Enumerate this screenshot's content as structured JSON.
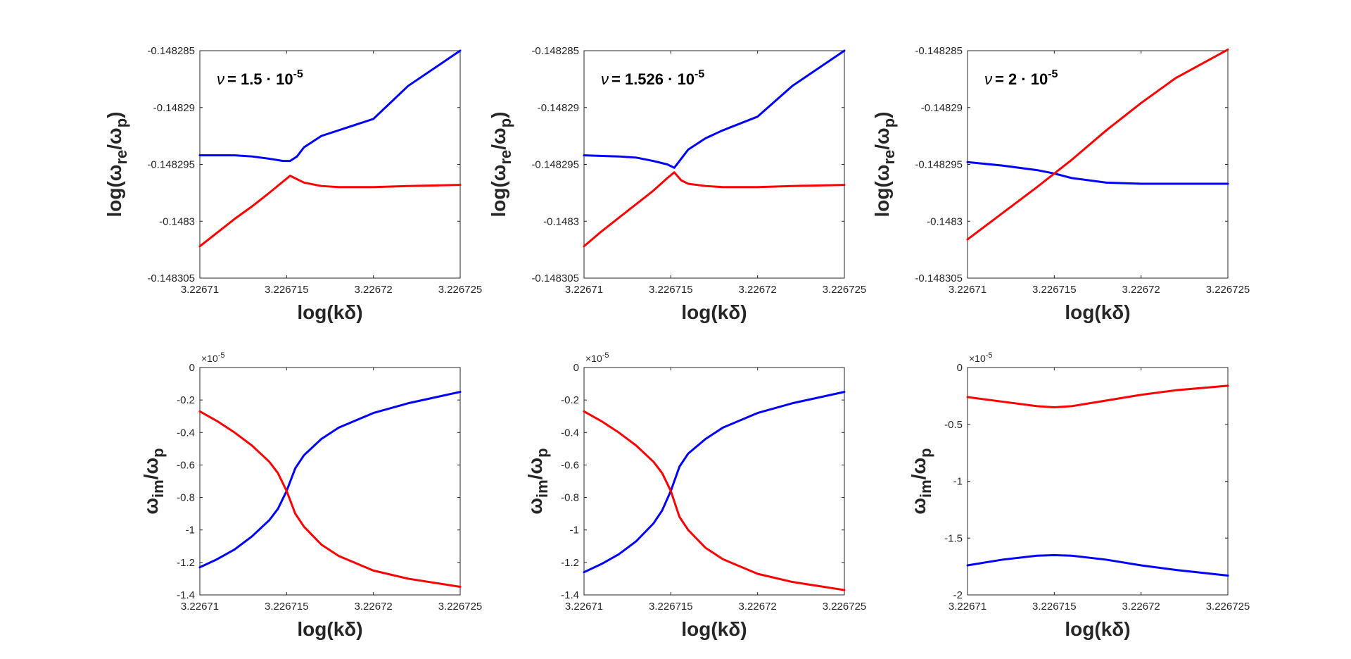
{
  "colors": {
    "series_a": "#0000ff",
    "series_b": "#ff0000",
    "axes": "#262626"
  },
  "chart_data": [
    {
      "type": "line",
      "panel": "top-left",
      "annotation": {
        "greek": "ν",
        "value": "= 1.5 · 10",
        "exponent": "-5"
      },
      "xlabel": "log(kδ)",
      "ylabel": {
        "prefix": "log(ω",
        "sub1": "re",
        "mid": "/ω",
        "sub2": "p",
        "suffix": ")"
      },
      "xlim": [
        3.22671,
        3.226725
      ],
      "ylim": [
        -0.148305,
        -0.148285
      ],
      "xticks": [
        3.22671,
        3.226715,
        3.22672,
        3.226725
      ],
      "xtick_labels": [
        "3.22671",
        "3.226715",
        "3.22672",
        "3.226725"
      ],
      "yticks": [
        -0.148305,
        -0.1483,
        -0.148295,
        -0.14829,
        -0.148285
      ],
      "ytick_labels": [
        "-0.148305",
        "-0.1483",
        "-0.148295",
        "-0.14829",
        "-0.148285"
      ],
      "series": [
        {
          "name": "blue",
          "color": "#0000ff",
          "x": [
            3.22671,
            3.226712,
            3.226713,
            3.226714,
            3.2267148,
            3.2267152,
            3.2267156,
            3.226716,
            3.226717,
            3.226718,
            3.22672,
            3.226722,
            3.226725
          ],
          "y": [
            -0.1482942,
            -0.1482942,
            -0.1482943,
            -0.1482945,
            -0.1482947,
            -0.1482947,
            -0.1482943,
            -0.1482935,
            -0.1482925,
            -0.148292,
            -0.148291,
            -0.1482881,
            -0.148285
          ]
        },
        {
          "name": "red",
          "color": "#ff0000",
          "x": [
            3.22671,
            3.226711,
            3.226712,
            3.226713,
            3.226714,
            3.2267148,
            3.2267152,
            3.2267156,
            3.226716,
            3.226717,
            3.226718,
            3.22672,
            3.226722,
            3.226725
          ],
          "y": [
            -0.1483022,
            -0.148301,
            -0.1482998,
            -0.1482987,
            -0.1482975,
            -0.1482965,
            -0.148296,
            -0.1482963,
            -0.1482966,
            -0.1482969,
            -0.148297,
            -0.148297,
            -0.1482969,
            -0.1482968
          ]
        }
      ]
    },
    {
      "type": "line",
      "panel": "top-middle",
      "annotation": {
        "greek": "ν",
        "value": "= 1.526 · 10",
        "exponent": "-5"
      },
      "xlabel": "log(kδ)",
      "ylabel": {
        "prefix": "log(ω",
        "sub1": "re",
        "mid": "/ω",
        "sub2": "p",
        "suffix": ")"
      },
      "xlim": [
        3.22671,
        3.226725
      ],
      "ylim": [
        -0.148305,
        -0.148285
      ],
      "xticks": [
        3.22671,
        3.226715,
        3.22672,
        3.226725
      ],
      "xtick_labels": [
        "3.22671",
        "3.226715",
        "3.22672",
        "3.226725"
      ],
      "yticks": [
        -0.148305,
        -0.1483,
        -0.148295,
        -0.14829,
        -0.148285
      ],
      "ytick_labels": [
        "-0.148305",
        "-0.1483",
        "-0.148295",
        "-0.14829",
        "-0.148285"
      ],
      "series": [
        {
          "name": "blue",
          "color": "#0000ff",
          "x": [
            3.22671,
            3.226712,
            3.226713,
            3.226714,
            3.2267148,
            3.2267152,
            3.2267156,
            3.226716,
            3.226717,
            3.226718,
            3.22672,
            3.226722,
            3.226725
          ],
          "y": [
            -0.1482942,
            -0.1482943,
            -0.1482944,
            -0.1482947,
            -0.148295,
            -0.1482953,
            -0.1482945,
            -0.1482937,
            -0.1482927,
            -0.148292,
            -0.1482908,
            -0.1482881,
            -0.148285
          ]
        },
        {
          "name": "red",
          "color": "#ff0000",
          "x": [
            3.22671,
            3.226711,
            3.226712,
            3.226713,
            3.226714,
            3.2267148,
            3.2267152,
            3.2267156,
            3.226716,
            3.226717,
            3.226718,
            3.22672,
            3.226722,
            3.226725
          ],
          "y": [
            -0.1483022,
            -0.1483009,
            -0.1482997,
            -0.1482985,
            -0.1482973,
            -0.1482962,
            -0.1482957,
            -0.1482964,
            -0.1482967,
            -0.1482969,
            -0.148297,
            -0.148297,
            -0.1482969,
            -0.1482968
          ]
        }
      ]
    },
    {
      "type": "line",
      "panel": "top-right",
      "annotation": {
        "greek": "ν",
        "value": "= 2 · 10",
        "exponent": "-5"
      },
      "xlabel": "log(kδ)",
      "ylabel": {
        "prefix": "log(ω",
        "sub1": "re",
        "mid": "/ω",
        "sub2": "p",
        "suffix": ")"
      },
      "xlim": [
        3.22671,
        3.226725
      ],
      "ylim": [
        -0.148305,
        -0.148285
      ],
      "xticks": [
        3.22671,
        3.226715,
        3.22672,
        3.226725
      ],
      "xtick_labels": [
        "3.22671",
        "3.226715",
        "3.22672",
        "3.226725"
      ],
      "yticks": [
        -0.148305,
        -0.1483,
        -0.148295,
        -0.14829,
        -0.148285
      ],
      "ytick_labels": [
        "-0.148305",
        "-0.1483",
        "-0.148295",
        "-0.14829",
        "-0.148285"
      ],
      "series": [
        {
          "name": "blue",
          "color": "#0000ff",
          "x": [
            3.22671,
            3.226712,
            3.226714,
            3.226715,
            3.226716,
            3.226718,
            3.22672,
            3.226722,
            3.226725
          ],
          "y": [
            -0.1482948,
            -0.1482951,
            -0.1482955,
            -0.1482958,
            -0.1482962,
            -0.1482966,
            -0.1482967,
            -0.1482967,
            -0.1482967
          ]
        },
        {
          "name": "red",
          "color": "#ff0000",
          "x": [
            3.22671,
            3.226712,
            3.226714,
            3.226715,
            3.226716,
            3.226718,
            3.22672,
            3.226722,
            3.226725
          ],
          "y": [
            -0.1483016,
            -0.1482993,
            -0.148297,
            -0.1482958,
            -0.1482946,
            -0.148292,
            -0.1482896,
            -0.1482874,
            -0.1482849
          ]
        }
      ]
    },
    {
      "type": "line",
      "panel": "bottom-left",
      "xlabel": "log(kδ)",
      "ylabel": {
        "prefix": "ω",
        "sub1": "im",
        "mid": "/ω",
        "sub2": "p",
        "suffix": ""
      },
      "exponent_label": {
        "base": "×10",
        "exp": "-5"
      },
      "xlim": [
        3.22671,
        3.226725
      ],
      "ylim": [
        -1.4,
        0
      ],
      "xticks": [
        3.22671,
        3.226715,
        3.22672,
        3.226725
      ],
      "xtick_labels": [
        "3.22671",
        "3.226715",
        "3.22672",
        "3.226725"
      ],
      "yticks": [
        -1.4,
        -1.2,
        -1,
        -0.8,
        -0.6,
        -0.4,
        -0.2,
        0
      ],
      "ytick_labels": [
        "-1.4",
        "-1.2",
        "-1",
        "-0.8",
        "-0.6",
        "-0.4",
        "-0.2",
        "0"
      ],
      "series": [
        {
          "name": "blue",
          "color": "#0000ff",
          "x": [
            3.22671,
            3.226711,
            3.226712,
            3.226713,
            3.226714,
            3.2267145,
            3.226715,
            3.2267155,
            3.226716,
            3.226717,
            3.226718,
            3.22672,
            3.226722,
            3.226725
          ],
          "y": [
            -1.23,
            -1.18,
            -1.12,
            -1.04,
            -0.94,
            -0.87,
            -0.76,
            -0.62,
            -0.54,
            -0.44,
            -0.37,
            -0.28,
            -0.22,
            -0.15
          ]
        },
        {
          "name": "red",
          "color": "#ff0000",
          "x": [
            3.22671,
            3.226711,
            3.226712,
            3.226713,
            3.226714,
            3.2267145,
            3.226715,
            3.2267155,
            3.226716,
            3.226717,
            3.226718,
            3.22672,
            3.226722,
            3.226725
          ],
          "y": [
            -0.27,
            -0.33,
            -0.4,
            -0.48,
            -0.58,
            -0.65,
            -0.76,
            -0.9,
            -0.98,
            -1.09,
            -1.16,
            -1.25,
            -1.3,
            -1.35
          ]
        }
      ]
    },
    {
      "type": "line",
      "panel": "bottom-middle",
      "xlabel": "log(kδ)",
      "ylabel": {
        "prefix": "ω",
        "sub1": "im",
        "mid": "/ω",
        "sub2": "p",
        "suffix": ""
      },
      "exponent_label": {
        "base": "×10",
        "exp": "-5"
      },
      "xlim": [
        3.22671,
        3.226725
      ],
      "ylim": [
        -1.4,
        0
      ],
      "xticks": [
        3.22671,
        3.226715,
        3.22672,
        3.226725
      ],
      "xtick_labels": [
        "3.22671",
        "3.226715",
        "3.22672",
        "3.226725"
      ],
      "yticks": [
        -1.4,
        -1.2,
        -1,
        -0.8,
        -0.6,
        -0.4,
        -0.2,
        0
      ],
      "ytick_labels": [
        "-1.4",
        "-1.2",
        "-1",
        "-0.8",
        "-0.6",
        "-0.4",
        "-0.2",
        "0"
      ],
      "series": [
        {
          "name": "blue",
          "color": "#0000ff",
          "x": [
            3.22671,
            3.226711,
            3.226712,
            3.226713,
            3.226714,
            3.2267145,
            3.226715,
            3.2267155,
            3.226716,
            3.226717,
            3.226718,
            3.22672,
            3.226722,
            3.226725
          ],
          "y": [
            -1.26,
            -1.21,
            -1.15,
            -1.07,
            -0.96,
            -0.88,
            -0.76,
            -0.61,
            -0.53,
            -0.44,
            -0.37,
            -0.28,
            -0.22,
            -0.15
          ]
        },
        {
          "name": "red",
          "color": "#ff0000",
          "x": [
            3.22671,
            3.226711,
            3.226712,
            3.226713,
            3.226714,
            3.2267145,
            3.226715,
            3.2267155,
            3.226716,
            3.226717,
            3.226718,
            3.22672,
            3.226722,
            3.226725
          ],
          "y": [
            -0.27,
            -0.33,
            -0.4,
            -0.48,
            -0.58,
            -0.65,
            -0.76,
            -0.92,
            -1.0,
            -1.11,
            -1.18,
            -1.27,
            -1.32,
            -1.37
          ]
        }
      ]
    },
    {
      "type": "line",
      "panel": "bottom-right",
      "xlabel": "log(kδ)",
      "ylabel": {
        "prefix": "ω",
        "sub1": "im",
        "mid": "/ω",
        "sub2": "p",
        "suffix": ""
      },
      "exponent_label": {
        "base": "×10",
        "exp": "-5"
      },
      "xlim": [
        3.22671,
        3.226725
      ],
      "ylim": [
        -2,
        0
      ],
      "xticks": [
        3.22671,
        3.226715,
        3.22672,
        3.226725
      ],
      "xtick_labels": [
        "3.22671",
        "3.226715",
        "3.22672",
        "3.226725"
      ],
      "yticks": [
        -2,
        -1.5,
        -1,
        -0.5,
        0
      ],
      "ytick_labels": [
        "-2",
        "-1.5",
        "-1",
        "-0.5",
        "0"
      ],
      "series": [
        {
          "name": "red",
          "color": "#ff0000",
          "x": [
            3.22671,
            3.226712,
            3.226714,
            3.226715,
            3.226716,
            3.226718,
            3.22672,
            3.226722,
            3.226725
          ],
          "y": [
            -0.26,
            -0.3,
            -0.34,
            -0.35,
            -0.34,
            -0.29,
            -0.24,
            -0.2,
            -0.16
          ]
        },
        {
          "name": "blue",
          "color": "#0000ff",
          "x": [
            3.22671,
            3.226712,
            3.226714,
            3.226715,
            3.226716,
            3.226718,
            3.22672,
            3.226722,
            3.226725
          ],
          "y": [
            -1.74,
            -1.69,
            -1.655,
            -1.65,
            -1.655,
            -1.69,
            -1.74,
            -1.78,
            -1.83
          ]
        }
      ]
    }
  ]
}
